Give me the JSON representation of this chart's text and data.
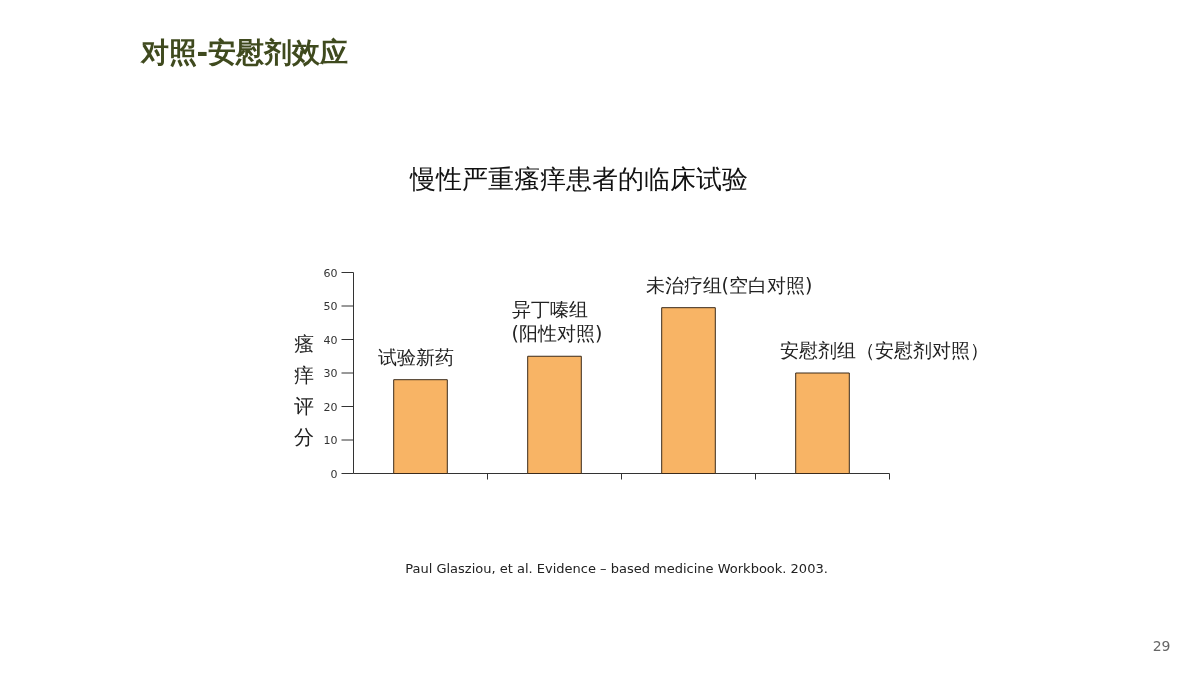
{
  "chart_data": {
    "type": "bar",
    "title": "对照-安慰剂效应",
    "subtitle": "慢性严重瘙痒患者的临床试验",
    "ylabel": "瘙痒评分",
    "categories": [
      "试验新药",
      "异丁嗪组\n(阳性对照)",
      "未治疗组(空白对照)",
      "安慰剂组（安慰剂对照）"
    ],
    "values": [
      28,
      35,
      49.5,
      30
    ],
    "color": "#f8b465",
    "ylim": [
      0,
      60
    ],
    "yticks": [
      0,
      10,
      20,
      30,
      40,
      50,
      60
    ],
    "grid": false,
    "legend": false,
    "annotations": [
      "Paul Glasziou, et al. Evidence – based medicine Workbook. 2003.",
      "29"
    ]
  }
}
